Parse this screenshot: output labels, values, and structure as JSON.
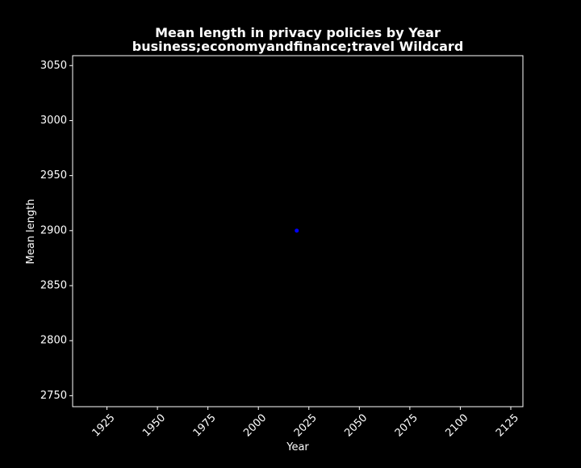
{
  "colors": {
    "background": "#000000",
    "foreground": "#ffffff",
    "point": "#0000ff"
  },
  "chart_data": {
    "type": "scatter",
    "title_line1": "Mean length in privacy policies by Year",
    "title_line2": "business;economyandfinance;travel Wildcard",
    "xlabel": "Year",
    "ylabel": "Mean length",
    "xlim": [
      1908,
      2131
    ],
    "ylim": [
      2740,
      3059
    ],
    "x_ticks": [
      1925,
      1950,
      1975,
      2000,
      2025,
      2050,
      2075,
      2100,
      2125
    ],
    "y_ticks": [
      2750,
      2800,
      2850,
      2900,
      2950,
      3000,
      3050
    ],
    "grid": false,
    "points": [
      {
        "x": 2019,
        "y": 2900
      }
    ]
  }
}
